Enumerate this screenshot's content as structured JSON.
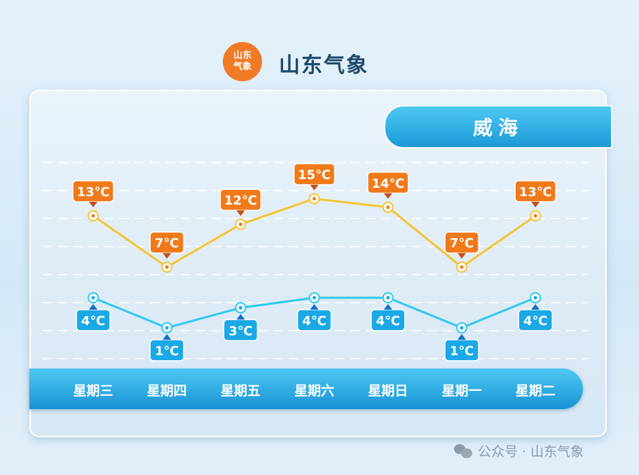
{
  "header": {
    "logo_text": "山东气象",
    "brand": "山东气象"
  },
  "city": "威海",
  "footer": {
    "text": "公众号 · 山东气象",
    "icon": "wechat-icon"
  },
  "colors": {
    "high": "#f4c430",
    "high_label": "#f07a1a",
    "low": "#2ec8f0",
    "low_label": "#1aa8e6"
  },
  "chart_data": {
    "type": "line",
    "categories": [
      "星期三",
      "星期四",
      "星期五",
      "星期六",
      "星期日",
      "星期一",
      "星期二"
    ],
    "series": [
      {
        "values": [
          13,
          7,
          12,
          15,
          14,
          7,
          13
        ],
        "labels": [
          "13℃",
          "7℃",
          "12℃",
          "15℃",
          "14℃",
          "7℃",
          "13℃"
        ]
      },
      {
        "values": [
          4,
          1,
          3,
          4,
          4,
          1,
          4
        ],
        "labels": [
          "4℃",
          "1℃",
          "3℃",
          "4℃",
          "4℃",
          "1℃",
          "4℃"
        ]
      }
    ],
    "grid": true
  }
}
